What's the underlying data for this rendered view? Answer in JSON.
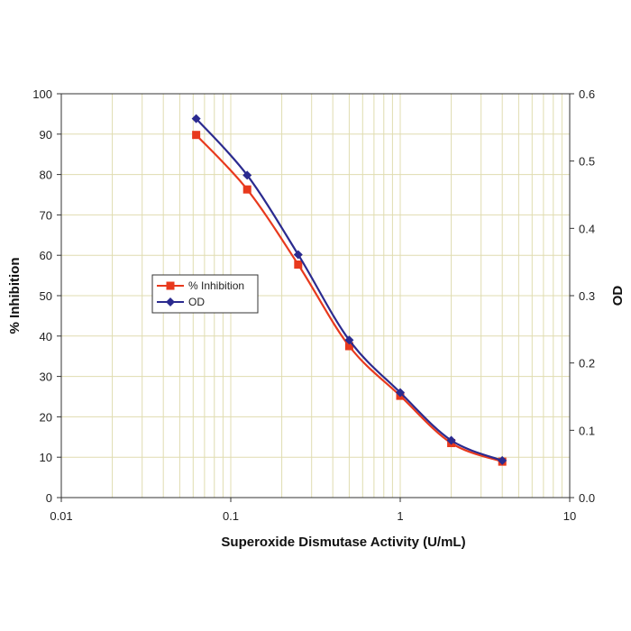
{
  "chart_data": {
    "type": "line",
    "title": "",
    "xlabel": "Superoxide Dismutase Activity (U/mL)",
    "ylabel": "% Inhibition",
    "y2label": "OD",
    "xscale": "log",
    "xlim": [
      0.01,
      10
    ],
    "ylim": [
      0,
      100
    ],
    "y2lim": [
      0,
      0.6
    ],
    "x_ticks": [
      "0.01",
      "0.1",
      "1",
      "10"
    ],
    "y_ticks": [
      "0",
      "10",
      "20",
      "30",
      "40",
      "50",
      "60",
      "70",
      "80",
      "90",
      "100"
    ],
    "y2_ticks": [
      "0.0",
      "0.1",
      "0.2",
      "0.3",
      "0.4",
      "0.5",
      "0.6"
    ],
    "grid": true,
    "legend_position": "center-left",
    "x": [
      0.0625,
      0.125,
      0.25,
      0.5,
      1,
      2,
      4
    ],
    "series": [
      {
        "name": "% Inhibition",
        "axis": "left",
        "color": "#e8391d",
        "marker": "square",
        "values": [
          89.8,
          76.3,
          57.7,
          37.5,
          25.2,
          13.5,
          8.9
        ]
      },
      {
        "name": "OD",
        "axis": "right",
        "color": "#2b2b8f",
        "marker": "diamond",
        "values": [
          0.563,
          0.479,
          0.361,
          0.234,
          0.156,
          0.085,
          0.055
        ]
      }
    ]
  }
}
